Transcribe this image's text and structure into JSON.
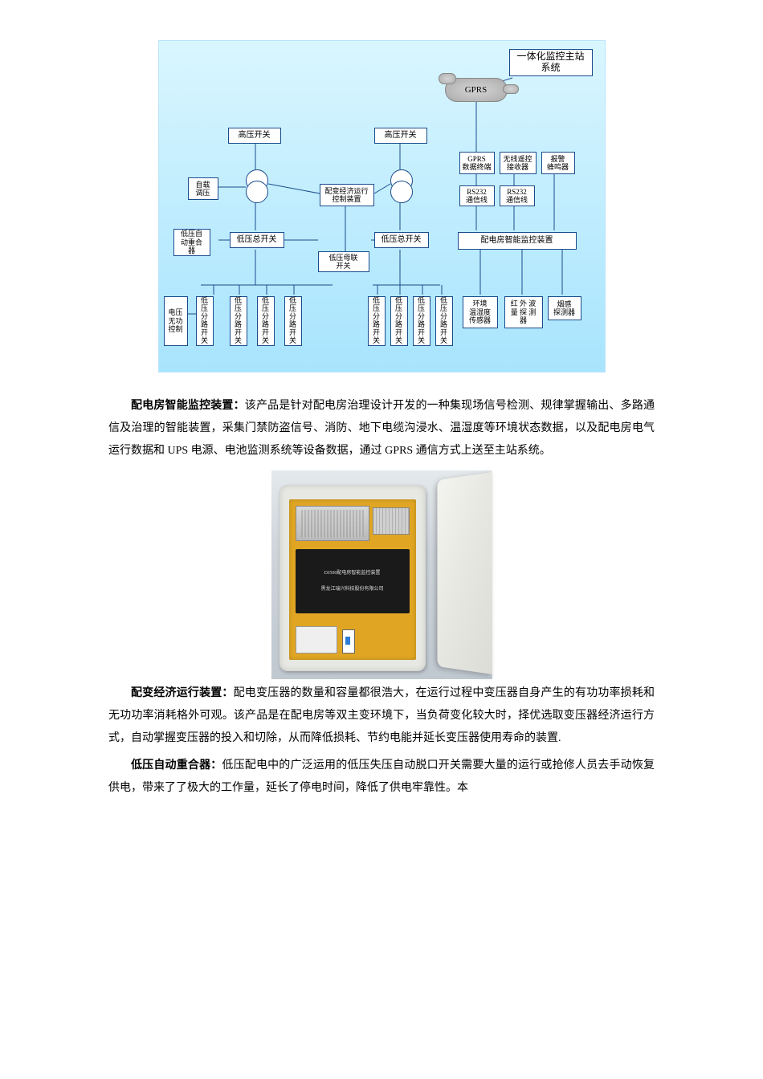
{
  "diagram": {
    "background_gradient": [
      "#d9f6ff",
      "#a8e4fd"
    ],
    "border_color": "#1a4b8c",
    "title_box": "一体化监控主站\n系统",
    "gprs_cloud": "GPRS",
    "row_hv": {
      "left": "高压开关",
      "right": "高压开关"
    },
    "controllers": {
      "auto_load_regulate": "自载\n调压",
      "econ_run": "配变经济运行\n控制装置"
    },
    "comm_boxes": {
      "gprs_terminal": "GPRS\n数据终端",
      "wireless_receiver": "无线遥控\n接收器",
      "alarm_buzzer": "报警\n蜂鸣器",
      "rs232_a": "RS232\n通信线",
      "rs232_b": "RS232\n通信线"
    },
    "row_lv_main": {
      "auto_recloser": "低压自\n动重合\n器",
      "lv_main_left": "低压总开关",
      "lv_main_right": "低压总开关",
      "tie_switch": "低压母联\n开关",
      "smart_monitor": "配电房智能监控装置"
    },
    "row_bottom": {
      "voltage_reactive": "电压\n无功\n控制",
      "branch": "低\n压\n分\n路\n开\n关",
      "env_sensor": "环境\n温湿度\n传感器",
      "ir_detector": "红 外 波\n量 探 测\n器",
      "smoke_detector": "烟感\n探测器"
    }
  },
  "photo": {
    "device_top_label": "DJ500配电房智能监控装置",
    "device_bottom_label": "黑龙江瑞兴科技股份有限公司"
  },
  "paragraphs": {
    "p1": {
      "bold": "配电房智能监控装置：",
      "text": "该产品是针对配电房治理设计开发的一种集现场信号检测、规律掌握输出、多路通信及治理的智能装置，采集门禁防盗信号、消防、地下电缆沟浸水、温湿度等环境状态数据，以及配电房电气运行数据和 UPS 电源、电池监测系统等设备数据，通过 GPRS 通信方式上送至主站系统。"
    },
    "p2": {
      "bold": "配变经济运行装置：",
      "text": "配电变压器的数量和容量都很浩大，在运行过程中变压器自身产生的有功功率损耗和无功功率消耗格外可观。该产品是在配电房等双主变环境下，当负荷变化较大时，择优选取变压器经济运行方式，自动掌握变压器的投入和切除，从而降低损耗、节约电能并延长变压器使用寿命的装置."
    },
    "p3": {
      "bold": "低压自动重合器：",
      "text": "低压配电中的广泛运用的低压失压自动脱口开关需要大量的运行或抢修人员去手动恢复供电，带来了了极大的工作量，延长了停电时间，降低了供电牢靠性。本"
    }
  }
}
